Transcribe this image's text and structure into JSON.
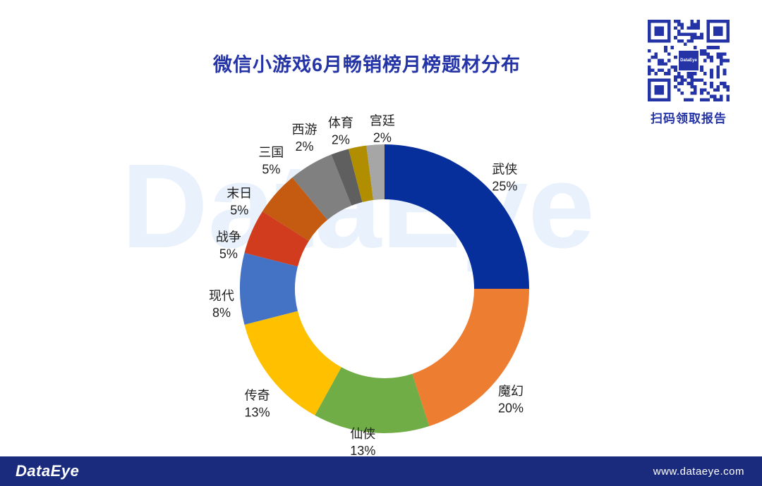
{
  "page": {
    "title": "微信小游戏6月畅销榜月榜题材分布",
    "watermark_text": "DataEye",
    "qr": {
      "caption": "扫码领取报告",
      "center_logo": "DataEye"
    },
    "footer": {
      "logo_text": "DataEye",
      "website": "www.dataeye.com"
    }
  },
  "colors": {
    "title_blue": "#2434A6",
    "qr_blue": "#2434A6",
    "footer_bg": "#1A2B7E",
    "watermark": "#E8F1FC",
    "label_text": "#1F1F1F"
  },
  "chart_data": {
    "type": "pie",
    "subtype": "donut",
    "title": "微信小游戏6月畅销榜月榜题材分布",
    "unit": "%",
    "direction": "clockwise",
    "start_angle_deg": 0,
    "inner_radius_ratio": 0.62,
    "legend": "none",
    "labels": "outside, category name with percent below",
    "categories": [
      "武侠",
      "魔幻",
      "仙侠",
      "传奇",
      "现代",
      "战争",
      "末日",
      "三国",
      "西游",
      "体育",
      "宫廷"
    ],
    "values": [
      25,
      20,
      13,
      13,
      8,
      5,
      5,
      5,
      2,
      2,
      2
    ],
    "colors": [
      "#062F9C",
      "#ED7D31",
      "#70AD47",
      "#FFC000",
      "#4472C4",
      "#D13B1E",
      "#C55A11",
      "#808080",
      "#5F5F5F",
      "#B08E00",
      "#A6A6A6"
    ]
  }
}
